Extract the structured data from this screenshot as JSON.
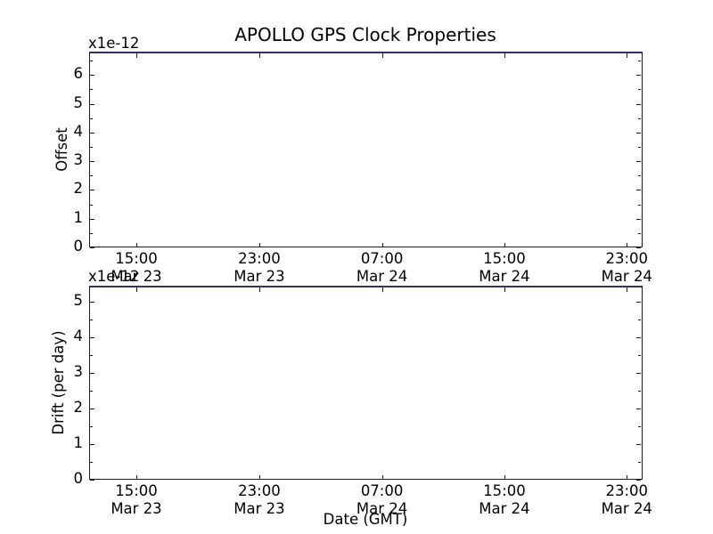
{
  "figure": {
    "title": "APOLLO GPS Clock Properties",
    "xlabel": "Date (GMT)"
  },
  "colors": {
    "background": "#ffffff",
    "spine": "#1c1c1c",
    "top_edge": "#32325e",
    "text": "#000000"
  },
  "top_chart": {
    "ylabel": "Offset",
    "scale_label": "x1e-12",
    "yticks": [
      0,
      1,
      2,
      3,
      4,
      5,
      6
    ],
    "ylim": [
      0,
      6.75
    ],
    "y_minor_step": 0.5
  },
  "bottom_chart": {
    "ylabel": "Drift (per day)",
    "scale_label": "x1e-12",
    "yticks": [
      0,
      1,
      2,
      3,
      4,
      5
    ],
    "ylim": [
      0,
      5.4
    ],
    "y_minor_step": 0.5
  },
  "x_axis": {
    "tick_labels": [
      {
        "time": "15:00",
        "date": "Mar 23"
      },
      {
        "time": "23:00",
        "date": "Mar 23"
      },
      {
        "time": "07:00",
        "date": "Mar 24"
      },
      {
        "time": "15:00",
        "date": "Mar 24"
      },
      {
        "time": "23:00",
        "date": "Mar 24"
      }
    ]
  },
  "chart_data": [
    {
      "type": "line",
      "title": "APOLLO GPS Clock Properties",
      "ylabel": "Offset",
      "y_scale_factor": "x1e-12",
      "ylim": [
        0,
        6.75
      ],
      "yticks": [
        0,
        1,
        2,
        3,
        4,
        5,
        6
      ],
      "y_minor_tick_step": 0.5,
      "x_tick_labels": [
        "15:00 Mar 23",
        "23:00 Mar 23",
        "07:00 Mar 24",
        "15:00 Mar 24",
        "23:00 Mar 24"
      ],
      "grid": false,
      "legend": null,
      "series": [],
      "note": "plot area is empty - no visible data points; only a dark navy line along the top spine"
    },
    {
      "type": "line",
      "title": "",
      "ylabel": "Drift (per day)",
      "xlabel": "Date (GMT)",
      "y_scale_factor": "x1e-12",
      "ylim": [
        0,
        5.4
      ],
      "yticks": [
        0,
        1,
        2,
        3,
        4,
        5
      ],
      "y_minor_tick_step": 0.5,
      "x_tick_labels": [
        "15:00 Mar 23",
        "23:00 Mar 23",
        "07:00 Mar 24",
        "15:00 Mar 24",
        "23:00 Mar 24"
      ],
      "grid": false,
      "legend": null,
      "series": [],
      "note": "plot area is empty - no visible data points; only a dark navy line along the top spine"
    }
  ]
}
